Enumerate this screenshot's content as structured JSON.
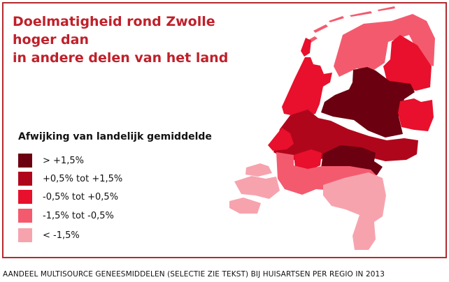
{
  "title": [
    "Doelmatigheid rond Zwolle hoger dan",
    "in andere delen van het land"
  ],
  "legend": {
    "title": "Afwijking van landelijk gemiddelde",
    "items": [
      {
        "label": "> +1,5%",
        "color": "#6b0010"
      },
      {
        "label": "+0,5% tot +1,5%",
        "color": "#b0061c"
      },
      {
        "label": "-0,5% tot +0,5%",
        "color": "#e8102c"
      },
      {
        "label": "-1,5% tot -0,5%",
        "color": "#f45a6e"
      },
      {
        "label": "< -1,5%",
        "color": "#f7a3ae"
      }
    ]
  },
  "footer": "AANDEEL MULTISOURCE GENEESMIDDELEN (SELECTIE ZIE TEKST) BIJ HUISARTSEN PER REGIO IN 2013"
}
